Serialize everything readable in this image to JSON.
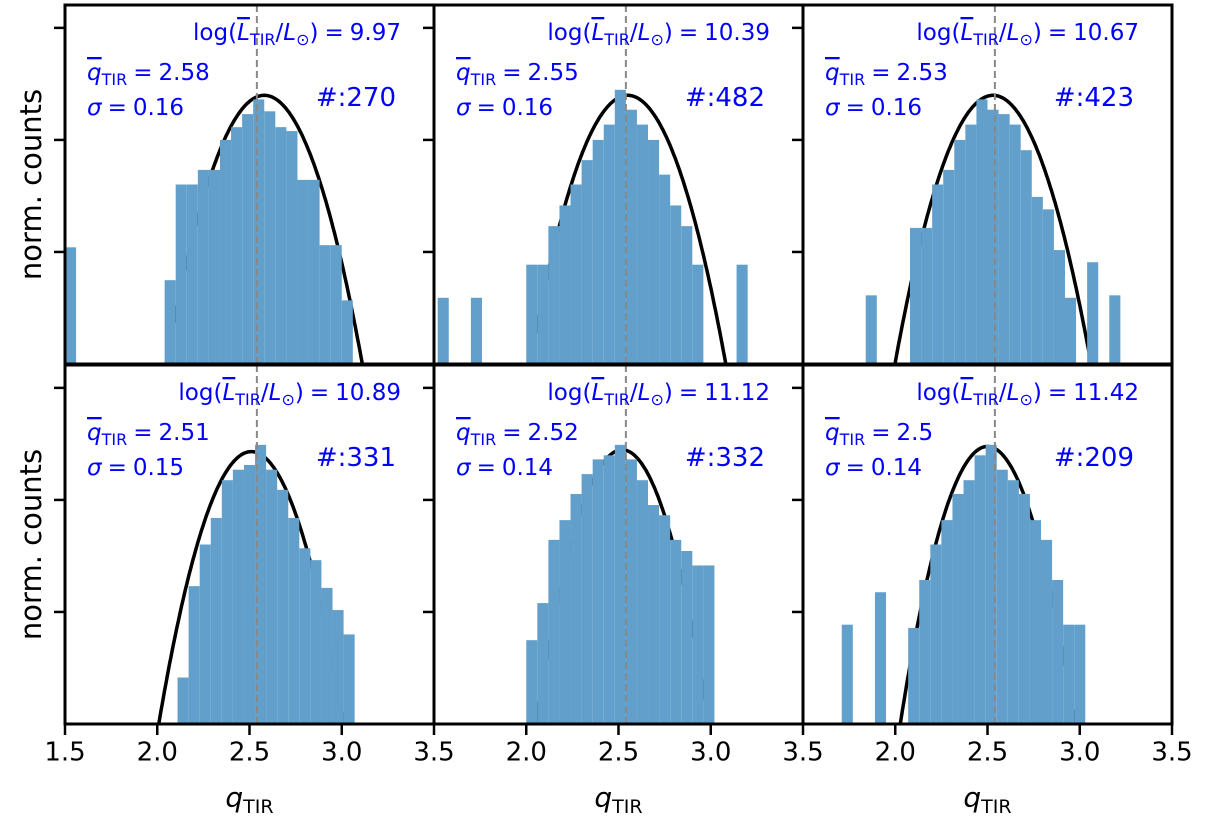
{
  "notation": {
    "log": "log(",
    "L": "L",
    "TIR": "TIR",
    "slash": "/",
    "sun": "⊙",
    "close": ")",
    "eq": "=",
    "q": "q",
    "sigma": "σ",
    "count": "#:",
    "ylabel": "norm. counts"
  },
  "chart_data": [
    {
      "type": "histogram",
      "color": "#62a0cb",
      "log_y": true,
      "xlim": [
        1.5,
        3.5
      ],
      "ylim": [
        0.001,
        1.6
      ],
      "yticks": [
        0.01,
        0.1,
        1
      ],
      "bins": [
        1.5,
        1.56,
        1.62,
        1.68,
        1.74,
        1.8,
        1.86,
        1.92,
        1.98,
        2.04,
        2.1,
        2.16,
        2.22,
        2.28,
        2.34,
        2.4,
        2.46,
        2.52,
        2.58,
        2.64,
        2.7,
        2.76,
        2.82,
        2.88,
        2.94,
        3.0,
        3.06
      ],
      "values": [
        0.011,
        0,
        0,
        0,
        0,
        0,
        0,
        0,
        0,
        0.0056,
        0.04,
        0.04,
        0.054,
        0.054,
        0.1,
        0.13,
        0.17,
        0.23,
        0.18,
        0.13,
        0.12,
        0.044,
        0.044,
        0.0115,
        0.0115,
        0.0037
      ],
      "log_lum": 9.97,
      "mean": 2.58,
      "sigma": 0.16,
      "count": 270,
      "fit_peak": 0.25,
      "reference": 2.54,
      "fit_color": "#000000",
      "reference_color": "#888888"
    },
    {
      "type": "histogram",
      "color": "#62a0cb",
      "log_y": true,
      "xlim": [
        1.5,
        3.5
      ],
      "ylim": [
        0.001,
        1.6
      ],
      "yticks": [
        0.01,
        0.1,
        1
      ],
      "bins": [
        1.52,
        1.58,
        1.64,
        1.7,
        1.76,
        1.82,
        1.88,
        1.94,
        2.0,
        2.06,
        2.12,
        2.18,
        2.24,
        2.3,
        2.36,
        2.42,
        2.48,
        2.54,
        2.6,
        2.66,
        2.72,
        2.78,
        2.84,
        2.9,
        2.96,
        3.02,
        3.08,
        3.14,
        3.2
      ],
      "values": [
        0.0039,
        0,
        0,
        0.0039,
        0,
        0,
        0,
        0,
        0.0077,
        0.0077,
        0.017,
        0.026,
        0.04,
        0.066,
        0.1,
        0.137,
        0.28,
        0.186,
        0.137,
        0.1,
        0.049,
        0.026,
        0.017,
        0.0077,
        0,
        0,
        0,
        0.0077
      ],
      "log_lum": 10.39,
      "mean": 2.55,
      "sigma": 0.16,
      "count": 482,
      "fit_peak": 0.25,
      "reference": 2.54,
      "fit_color": "#000000",
      "reference_color": "#888888"
    },
    {
      "type": "histogram",
      "color": "#62a0cb",
      "log_y": true,
      "xlim": [
        1.5,
        3.5
      ],
      "ylim": [
        0.001,
        1.6
      ],
      "yticks": [
        0.01,
        0.1,
        1
      ],
      "bins": [
        1.84,
        1.9,
        1.96,
        2.02,
        2.08,
        2.14,
        2.2,
        2.26,
        2.32,
        2.38,
        2.44,
        2.5,
        2.56,
        2.62,
        2.68,
        2.74,
        2.8,
        2.86,
        2.92,
        2.98,
        3.04,
        3.1,
        3.16,
        3.22
      ],
      "values": [
        0.0041,
        0,
        0,
        0,
        0.0164,
        0.0164,
        0.04,
        0.054,
        0.1,
        0.137,
        0.23,
        0.186,
        0.17,
        0.137,
        0.081,
        0.031,
        0.024,
        0.0104,
        0.0039,
        0,
        0.0081,
        0,
        0.0041
      ],
      "log_lum": 10.67,
      "mean": 2.53,
      "sigma": 0.16,
      "count": 423,
      "fit_peak": 0.25,
      "reference": 2.54,
      "fit_color": "#000000",
      "reference_color": "#888888"
    },
    {
      "type": "histogram",
      "color": "#62a0cb",
      "log_y": true,
      "xlim": [
        1.5,
        3.5
      ],
      "ylim": [
        0.001,
        1.6
      ],
      "yticks": [
        0.01,
        0.1,
        1
      ],
      "xticks": [
        1.5,
        {
          "value": 2,
          "label": "2.0"
        },
        2.5,
        {
          "value": 3,
          "label": "3.0"
        },
        3.5
      ],
      "bins": [
        2.11,
        2.17,
        2.23,
        2.29,
        2.35,
        2.41,
        2.47,
        2.53,
        2.59,
        2.65,
        2.71,
        2.77,
        2.83,
        2.89,
        2.95,
        3.01,
        3.07
      ],
      "values": [
        0.0026,
        0.017,
        0.04,
        0.069,
        0.15,
        0.186,
        0.205,
        0.31,
        0.186,
        0.123,
        0.069,
        0.037,
        0.029,
        0.0164,
        0.0104,
        0.0063
      ],
      "log_lum": 10.89,
      "mean": 2.51,
      "sigma": 0.15,
      "count": 331,
      "fit_peak": 0.27,
      "reference": 2.54,
      "fit_color": "#000000",
      "reference_color": "#888888"
    },
    {
      "type": "histogram",
      "color": "#62a0cb",
      "log_y": true,
      "xlim": [
        1.5,
        3.5
      ],
      "ylim": [
        0.001,
        1.6
      ],
      "yticks": [
        0.01,
        0.1,
        1
      ],
      "xticks": [
        {
          "value": 2,
          "label": "2.0"
        },
        2.5,
        {
          "value": 3,
          "label": "3.0"
        },
        3.5
      ],
      "bins": [
        2.0,
        2.06,
        2.12,
        2.18,
        2.24,
        2.3,
        2.36,
        2.42,
        2.48,
        2.54,
        2.6,
        2.66,
        2.72,
        2.78,
        2.84,
        2.9,
        2.96,
        3.02
      ],
      "values": [
        0.0056,
        0.012,
        0.044,
        0.066,
        0.113,
        0.17,
        0.23,
        0.25,
        0.31,
        0.23,
        0.15,
        0.09,
        0.073,
        0.044,
        0.035,
        0.026,
        0.026
      ],
      "log_lum": 11.12,
      "mean": 2.52,
      "sigma": 0.14,
      "count": 332,
      "fit_peak": 0.28,
      "reference": 2.54,
      "fit_color": "#000000",
      "reference_color": "#888888"
    },
    {
      "type": "histogram",
      "color": "#62a0cb",
      "log_y": true,
      "xlim": [
        1.5,
        3.5
      ],
      "ylim": [
        0.001,
        1.6
      ],
      "yticks": [
        0.01,
        0.1,
        1
      ],
      "xticks": [
        {
          "value": 2,
          "label": "2.0"
        },
        2.5,
        {
          "value": 3,
          "label": "3.0"
        },
        3.5
      ],
      "bins": [
        1.71,
        1.77,
        1.83,
        1.89,
        1.95,
        2.01,
        2.07,
        2.13,
        2.19,
        2.25,
        2.31,
        2.37,
        2.43,
        2.49,
        2.55,
        2.61,
        2.67,
        2.73,
        2.79,
        2.85,
        2.91,
        2.97,
        3.03
      ],
      "values": [
        0.0077,
        0,
        0,
        0.015,
        0,
        0,
        0.0072,
        0.0193,
        0.04,
        0.066,
        0.113,
        0.15,
        0.25,
        0.31,
        0.186,
        0.15,
        0.113,
        0.066,
        0.044,
        0.0193,
        0.0077,
        0.0077
      ],
      "log_lum": 11.42,
      "mean": 2.5,
      "sigma": 0.14,
      "count": 209,
      "fit_peak": 0.3,
      "reference": 2.54,
      "fit_color": "#000000",
      "reference_color": "#888888"
    }
  ]
}
